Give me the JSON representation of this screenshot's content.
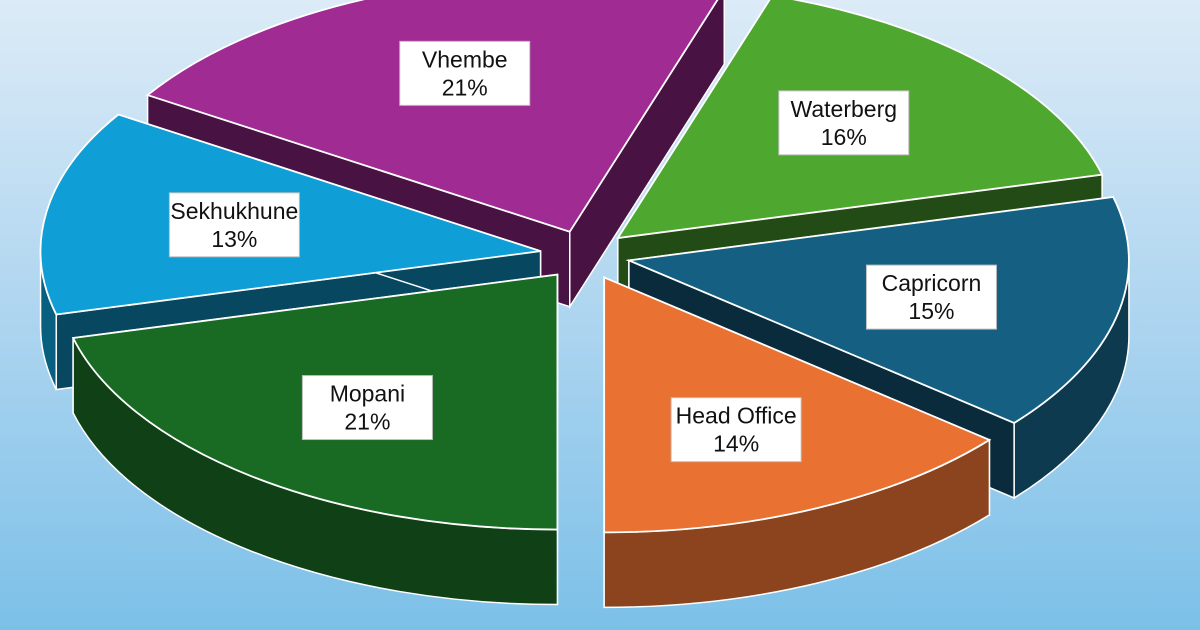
{
  "chart_data": {
    "type": "pie",
    "title": "",
    "slices": [
      {
        "label": "Waterberg",
        "value": 16,
        "value_label": "16%",
        "color": "#4ea72e"
      },
      {
        "label": "Capricorn",
        "value": 15,
        "value_label": "15%",
        "color": "#156082"
      },
      {
        "label": "Head Office",
        "value": 14,
        "value_label": "14%",
        "color": "#e97132"
      },
      {
        "label": "Mopani",
        "value": 21,
        "value_label": "21%",
        "color": "#196b24"
      },
      {
        "label": "Sekhukhune",
        "value": 13,
        "value_label": "13%",
        "color": "#0f9ed5"
      },
      {
        "label": "Vhembe",
        "value": 21,
        "value_label": "21%",
        "color": "#a02b93"
      }
    ],
    "exploded": true,
    "style": "3d",
    "data_labels": "callouts"
  }
}
